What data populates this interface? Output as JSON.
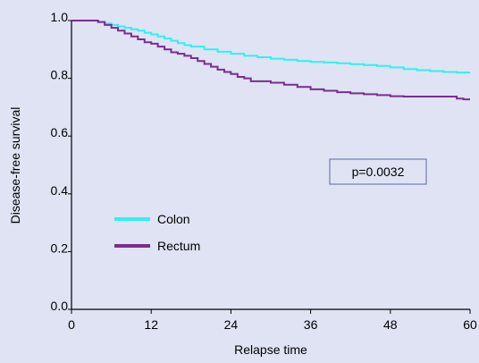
{
  "chart_data": {
    "type": "line",
    "xlabel": "Relapse time",
    "ylabel": "Disease-free survival",
    "xlim": [
      0,
      60
    ],
    "ylim": [
      0,
      1.0
    ],
    "x_ticks": [
      0,
      12,
      24,
      36,
      48,
      60
    ],
    "y_ticks": [
      0.0,
      0.2,
      0.4,
      0.6,
      0.8,
      1.0
    ],
    "x_tick_labels": [
      "0",
      "12",
      "24",
      "36",
      "48",
      "60"
    ],
    "y_tick_labels": [
      "0.0",
      "0.2",
      "0.4",
      "0.6",
      "0.8",
      "1.0"
    ],
    "grid": false,
    "legend_position": "middle-left",
    "annotation": "p=0.0032",
    "colors": {
      "background": "#dfe3f4",
      "axis": "#000000",
      "annotation_border": "#5a6a9a"
    },
    "series": [
      {
        "name": "Colon",
        "color": "#2ef2f2",
        "step": true,
        "x": [
          0,
          2,
          4,
          5,
          6,
          7,
          8,
          9,
          10,
          11,
          12,
          13,
          14,
          15,
          16,
          17,
          18,
          20,
          22,
          24,
          26,
          28,
          30,
          32,
          34,
          36,
          38,
          40,
          42,
          44,
          46,
          48,
          50,
          52,
          54,
          56,
          58,
          60
        ],
        "y": [
          1.0,
          1.0,
          0.995,
          0.99,
          0.985,
          0.98,
          0.975,
          0.97,
          0.965,
          0.958,
          0.952,
          0.945,
          0.938,
          0.93,
          0.922,
          0.915,
          0.91,
          0.9,
          0.892,
          0.885,
          0.878,
          0.873,
          0.868,
          0.864,
          0.86,
          0.857,
          0.855,
          0.852,
          0.849,
          0.846,
          0.843,
          0.838,
          0.832,
          0.828,
          0.825,
          0.822,
          0.82,
          0.82
        ]
      },
      {
        "name": "Rectum",
        "color": "#7b2d8e",
        "step": true,
        "x": [
          0,
          3,
          4,
          5,
          6,
          7,
          8,
          9,
          10,
          11,
          12,
          13,
          14,
          15,
          16,
          17,
          18,
          19,
          20,
          21,
          22,
          23,
          24,
          25,
          26,
          27,
          28,
          30,
          32,
          34,
          36,
          38,
          40,
          42,
          44,
          46,
          48,
          50,
          52,
          54,
          56,
          58,
          59,
          60
        ],
        "y": [
          1.0,
          1.0,
          0.995,
          0.985,
          0.975,
          0.965,
          0.955,
          0.945,
          0.935,
          0.925,
          0.92,
          0.91,
          0.9,
          0.89,
          0.885,
          0.878,
          0.87,
          0.86,
          0.85,
          0.84,
          0.83,
          0.822,
          0.815,
          0.805,
          0.8,
          0.79,
          0.79,
          0.785,
          0.778,
          0.77,
          0.762,
          0.757,
          0.752,
          0.748,
          0.745,
          0.742,
          0.738,
          0.737,
          0.737,
          0.737,
          0.737,
          0.73,
          0.727,
          0.727
        ]
      }
    ]
  }
}
